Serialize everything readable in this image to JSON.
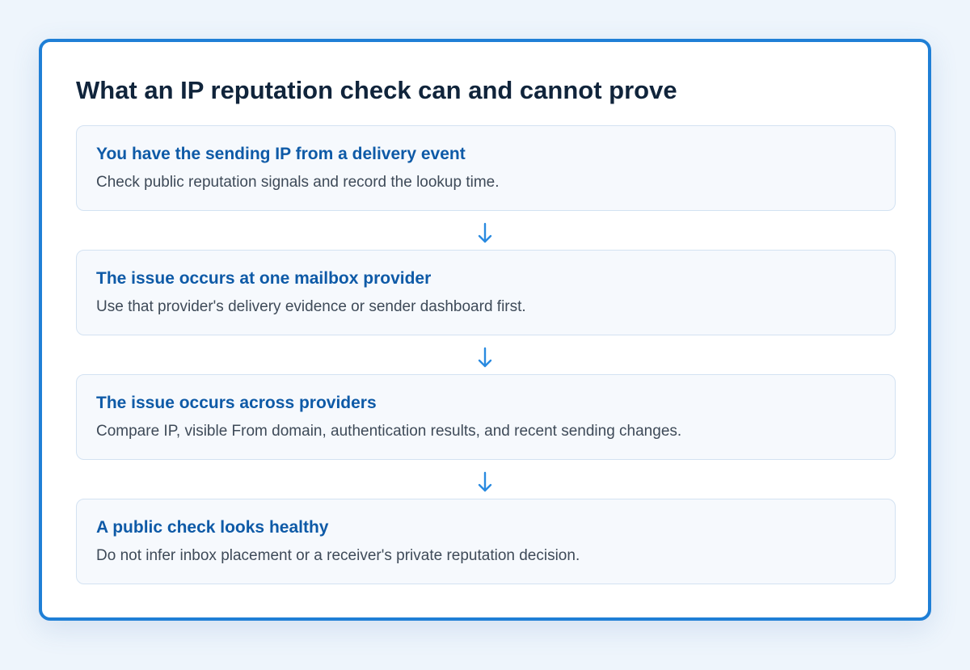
{
  "title": "What an IP reputation check can and cannot prove",
  "steps": [
    {
      "title": "You have the sending IP from a delivery event",
      "description": "Check public reputation signals and record the lookup time."
    },
    {
      "title": "The issue occurs at one mailbox provider",
      "description": "Use that provider's delivery evidence or sender dashboard first."
    },
    {
      "title": "The issue occurs across providers",
      "description": "Compare IP, visible From domain, authentication results, and recent sending changes."
    },
    {
      "title": "A public check looks healthy",
      "description": "Do not infer inbox placement or a receiver's private reputation decision."
    }
  ],
  "colors": {
    "accent": "#1f7fd6",
    "step_title": "#0e5aa7",
    "arrow": "#2a8ae0"
  }
}
